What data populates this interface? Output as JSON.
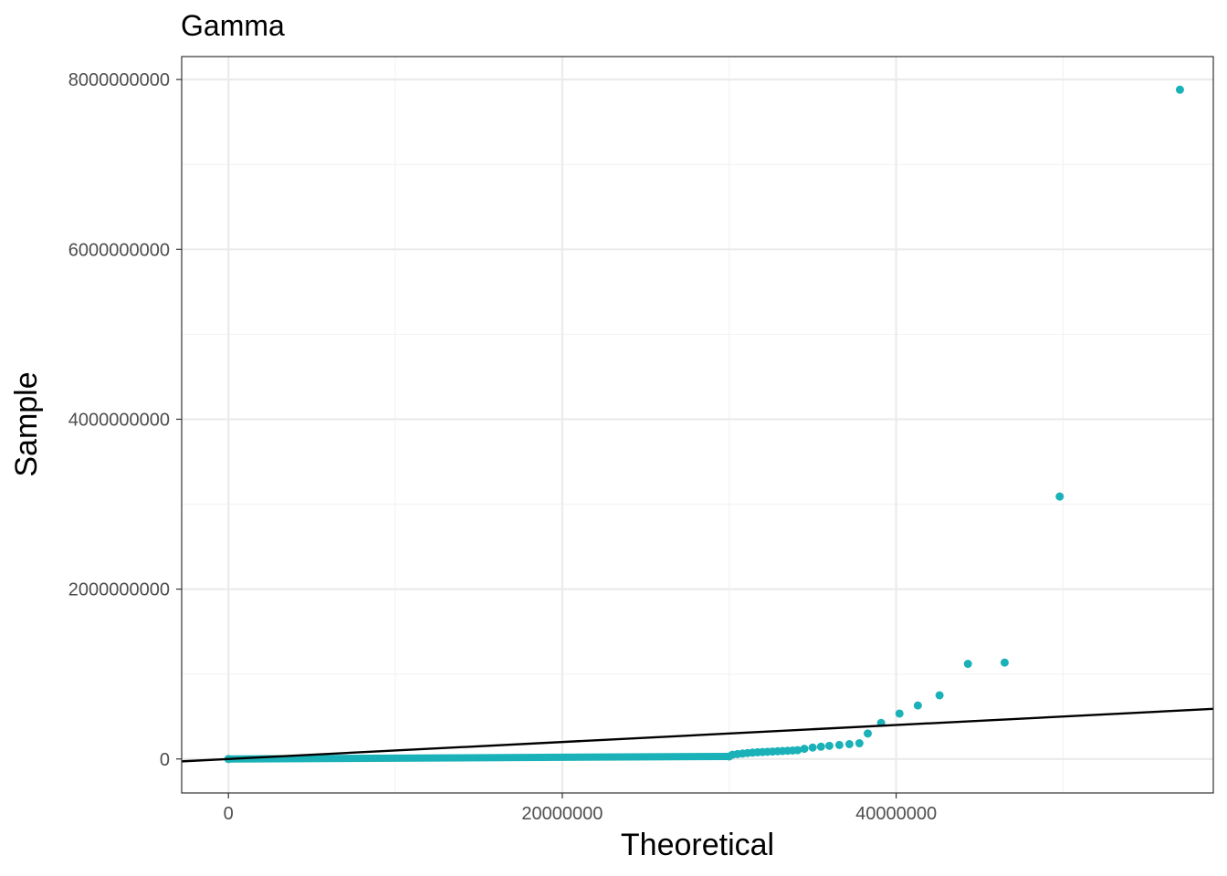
{
  "chart_data": {
    "type": "scatter",
    "title": "Gamma",
    "xlabel": "Theoretical",
    "ylabel": "Sample",
    "xlim": [
      -2800000,
      59000000
    ],
    "ylim": [
      -400000000,
      8270000000
    ],
    "x_ticks": [
      0,
      20000000,
      40000000
    ],
    "x_tick_labels": [
      "0",
      "20000000",
      "40000000"
    ],
    "y_ticks": [
      0,
      2000000000,
      4000000000,
      6000000000,
      8000000000
    ],
    "y_tick_labels": [
      "0",
      "2000000000",
      "4000000000",
      "6000000000",
      "8000000000"
    ],
    "grid": true,
    "point_color": "#1ab2b8",
    "line_color": "#000000",
    "dense_band": {
      "x_start": 0,
      "x_end": 30000000,
      "y_start": 0,
      "y_end": 30000000
    },
    "points": [
      {
        "x": 30200000,
        "y": 50000000
      },
      {
        "x": 30500000,
        "y": 58000000
      },
      {
        "x": 30800000,
        "y": 64000000
      },
      {
        "x": 31100000,
        "y": 70000000
      },
      {
        "x": 31400000,
        "y": 75000000
      },
      {
        "x": 31700000,
        "y": 79000000
      },
      {
        "x": 32000000,
        "y": 82000000
      },
      {
        "x": 32300000,
        "y": 85000000
      },
      {
        "x": 32600000,
        "y": 88000000
      },
      {
        "x": 32900000,
        "y": 91000000
      },
      {
        "x": 33200000,
        "y": 94000000
      },
      {
        "x": 33500000,
        "y": 97000000
      },
      {
        "x": 33800000,
        "y": 100000000
      },
      {
        "x": 34100000,
        "y": 104000000
      },
      {
        "x": 34500000,
        "y": 120000000
      },
      {
        "x": 35000000,
        "y": 135000000
      },
      {
        "x": 35500000,
        "y": 145000000
      },
      {
        "x": 36000000,
        "y": 155000000
      },
      {
        "x": 36600000,
        "y": 165000000
      },
      {
        "x": 37200000,
        "y": 175000000
      },
      {
        "x": 37800000,
        "y": 185000000
      },
      {
        "x": 38300000,
        "y": 300000000
      },
      {
        "x": 39100000,
        "y": 425000000
      },
      {
        "x": 40200000,
        "y": 535000000
      },
      {
        "x": 41300000,
        "y": 630000000
      },
      {
        "x": 42600000,
        "y": 750000000
      },
      {
        "x": 44300000,
        "y": 1120000000
      },
      {
        "x": 46500000,
        "y": 1135000000
      },
      {
        "x": 49800000,
        "y": 3090000000
      },
      {
        "x": 57000000,
        "y": 7880000000
      }
    ],
    "reference_line": {
      "slope": 10,
      "intercept": 0
    }
  }
}
